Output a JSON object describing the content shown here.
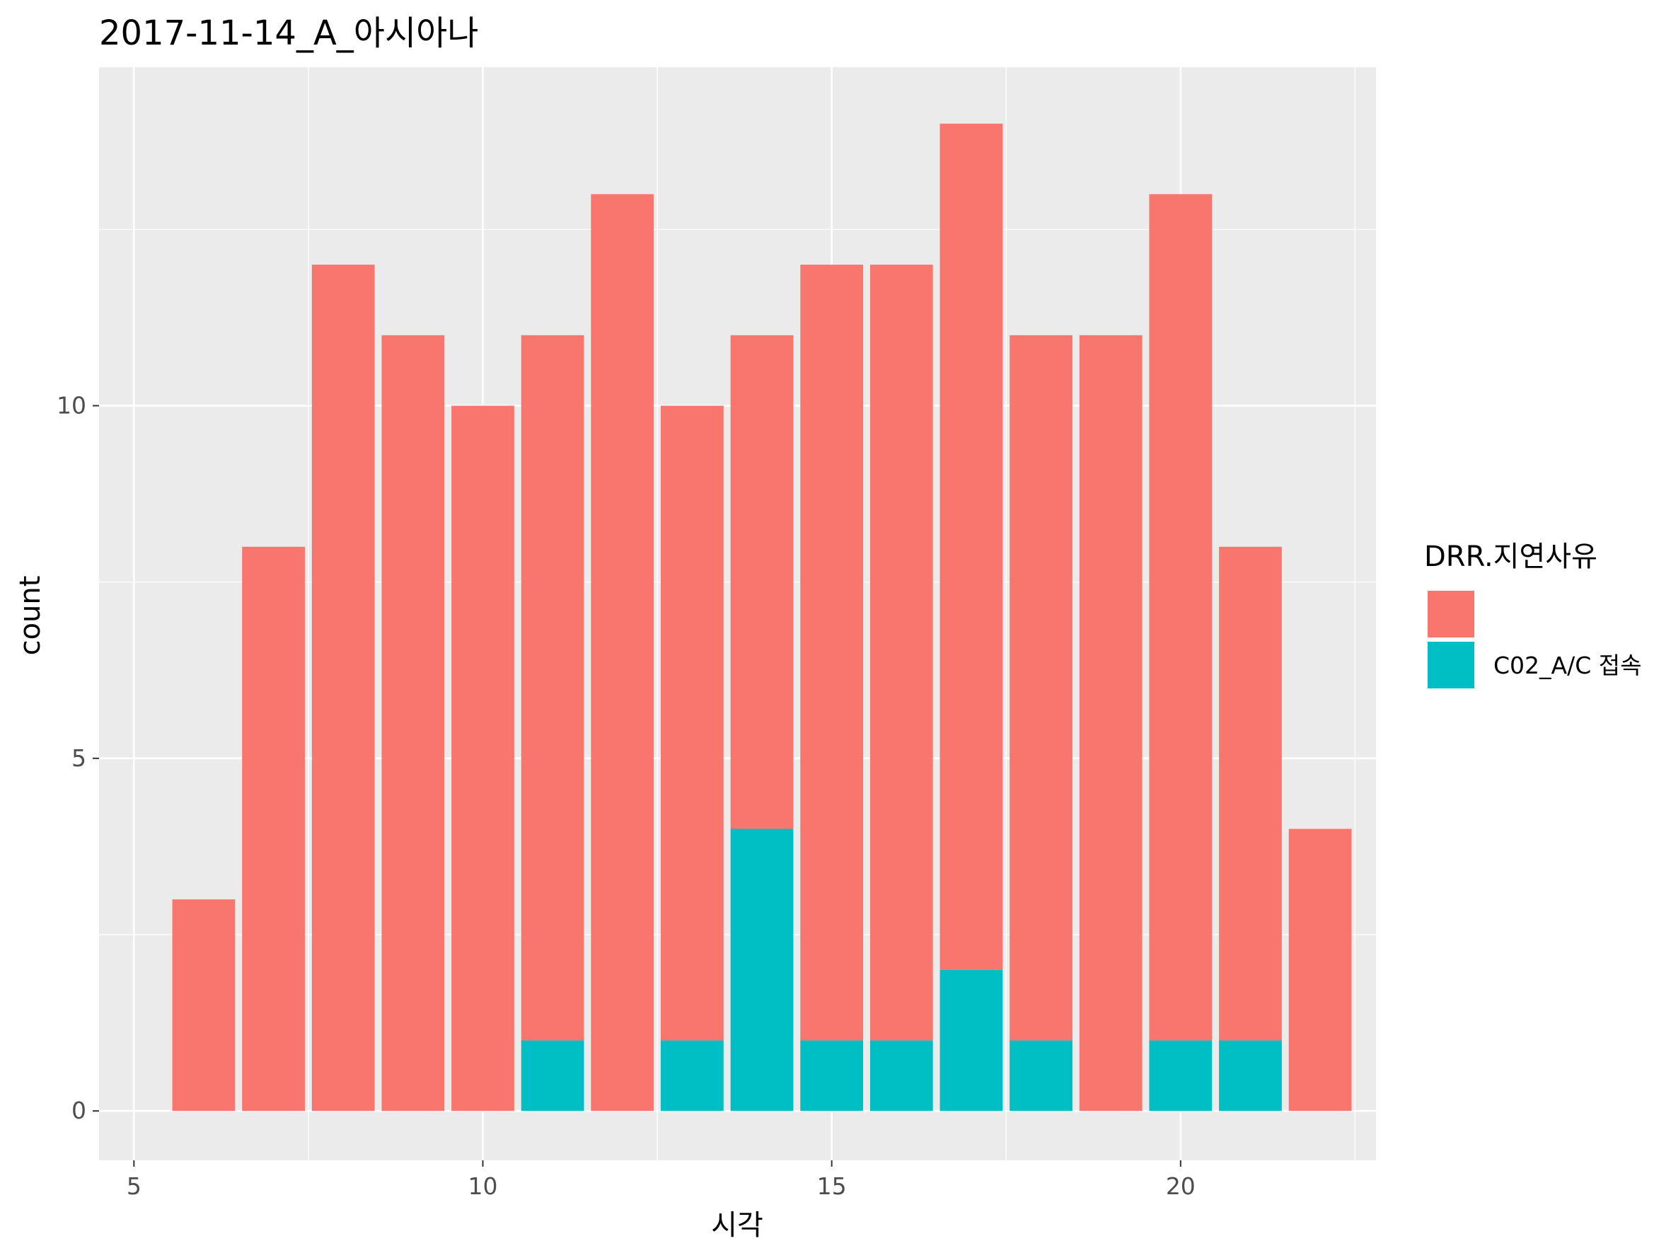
{
  "chart_data": {
    "type": "bar",
    "stacked": true,
    "title": "2017-11-14_A_아시아나",
    "xlabel": "시각",
    "ylabel": "count",
    "x": [
      6,
      7,
      8,
      9,
      10,
      11,
      12,
      13,
      14,
      15,
      16,
      17,
      18,
      19,
      20,
      21,
      22
    ],
    "series": [
      {
        "name": "",
        "color": "#F8766D",
        "values": [
          3,
          8,
          12,
          11,
          10,
          10,
          13,
          9,
          7,
          11,
          11,
          12,
          10,
          11,
          12,
          7,
          4
        ]
      },
      {
        "name": "C02_A/C 접속",
        "color": "#00BFC4",
        "values": [
          0,
          0,
          0,
          0,
          0,
          1,
          0,
          1,
          4,
          1,
          1,
          2,
          1,
          0,
          1,
          1,
          0
        ]
      }
    ],
    "totals": [
      3,
      8,
      12,
      11,
      10,
      11,
      13,
      10,
      11,
      12,
      12,
      14,
      11,
      11,
      13,
      8,
      4
    ],
    "xlim": [
      4.5,
      22.8
    ],
    "ylim": [
      -0.7,
      14.8
    ],
    "x_ticks": [
      5,
      10,
      15,
      20
    ],
    "x_minor_ticks": [
      7.5,
      12.5,
      17.5,
      22.5
    ],
    "y_ticks": [
      0,
      5,
      10
    ],
    "y_minor_ticks": [
      2.5,
      7.5,
      12.5
    ],
    "grid": true,
    "panel_background": "#EBEBEB",
    "grid_color": "#FFFFFF",
    "legend": {
      "title": "DRR.지연사유",
      "position": "right",
      "entries": [
        "",
        "C02_A/C 접속"
      ]
    }
  }
}
